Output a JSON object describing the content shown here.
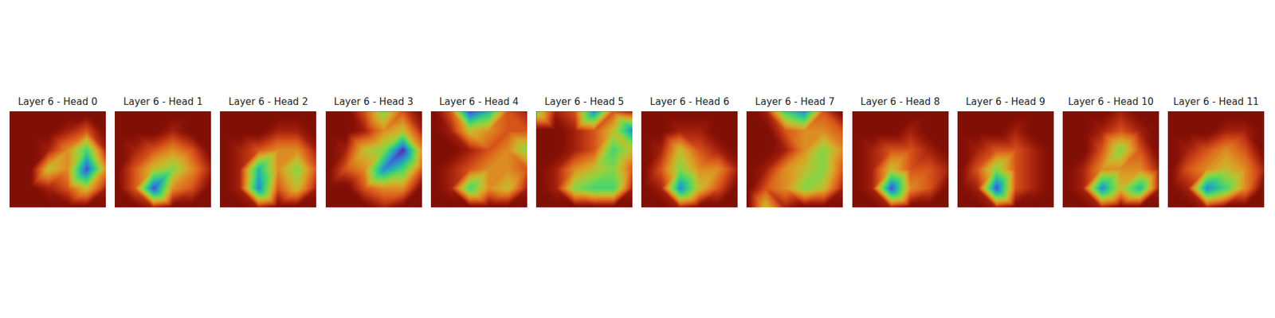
{
  "chart_data": {
    "type": "heatmap_grid",
    "zlim": [
      0,
      1
    ],
    "tick_labels": false,
    "panels": [
      {
        "title": "Layer 6 - Head 0",
        "cells": [
          [
            0,
            0,
            0,
            0,
            0,
            0
          ],
          [
            0,
            0,
            0,
            0.1,
            0.2,
            0
          ],
          [
            0,
            0,
            0.1,
            0.3,
            0.6,
            0.1
          ],
          [
            0,
            0,
            0.4,
            0.3,
            0.9,
            0.3
          ],
          [
            0,
            0,
            0.1,
            0.2,
            0.4,
            0.1
          ],
          [
            0,
            0,
            0,
            0,
            0,
            0
          ]
        ]
      },
      {
        "title": "Layer 6 - Head 1",
        "cells": [
          [
            0,
            0,
            0,
            0,
            0,
            0
          ],
          [
            0,
            0,
            0,
            0.1,
            0,
            0
          ],
          [
            0,
            0.1,
            0.2,
            0.3,
            0.2,
            0
          ],
          [
            0,
            0.2,
            0.4,
            0.5,
            0.3,
            0.1
          ],
          [
            0,
            0.2,
            0.9,
            0.3,
            0.2,
            0
          ],
          [
            0,
            0,
            0.1,
            0,
            0,
            0
          ]
        ]
      },
      {
        "title": "Layer 6 - Head 2",
        "cells": [
          [
            0,
            0,
            0,
            0,
            0,
            0
          ],
          [
            0,
            0,
            0,
            0.1,
            0.1,
            0
          ],
          [
            0,
            0.1,
            0.2,
            0.3,
            0.3,
            0.1
          ],
          [
            0,
            0.1,
            0.7,
            0.3,
            0.5,
            0.2
          ],
          [
            0,
            0.1,
            0.8,
            0.2,
            0.4,
            0.1
          ],
          [
            0,
            0,
            0.1,
            0,
            0,
            0
          ]
        ]
      },
      {
        "title": "Layer 6 - Head 3",
        "cells": [
          [
            0,
            0,
            0.2,
            0.5,
            0.2,
            0
          ],
          [
            0,
            0,
            0.1,
            0.3,
            0.4,
            0.1
          ],
          [
            0,
            0.1,
            0.4,
            0.5,
            0.95,
            0.3
          ],
          [
            0,
            0.2,
            0.3,
            0.8,
            0.6,
            0.2
          ],
          [
            0,
            0,
            0.2,
            0.3,
            0.3,
            0
          ],
          [
            0,
            0,
            0,
            0.1,
            0,
            0
          ]
        ]
      },
      {
        "title": "Layer 6 - Head 4",
        "cells": [
          [
            0,
            0.2,
            0.9,
            0.7,
            0.2,
            0.1
          ],
          [
            0,
            0.1,
            0.4,
            0.3,
            0.2,
            0.2
          ],
          [
            0,
            0,
            0.1,
            0.2,
            0.3,
            0.5
          ],
          [
            0,
            0.1,
            0.2,
            0.3,
            0.3,
            0.2
          ],
          [
            0,
            0.1,
            0.6,
            0.3,
            0.4,
            0.1
          ],
          [
            0,
            0,
            0,
            0,
            0,
            0
          ]
        ]
      },
      {
        "title": "Layer 6 - Head 5",
        "cells": [
          [
            0.5,
            0.1,
            0.2,
            0.8,
            0.2,
            0.1
          ],
          [
            0,
            0,
            0.1,
            0.2,
            0.4,
            0.8
          ],
          [
            0,
            0,
            0.1,
            0.2,
            0.6,
            0.4
          ],
          [
            0,
            0.1,
            0.3,
            0.4,
            0.5,
            0.2
          ],
          [
            0,
            0.1,
            0.5,
            0.6,
            0.6,
            0.1
          ],
          [
            0,
            0,
            0,
            0,
            0,
            0
          ]
        ]
      },
      {
        "title": "Layer 6 - Head 6",
        "cells": [
          [
            0,
            0,
            0,
            0,
            0,
            0
          ],
          [
            0,
            0,
            0.1,
            0.1,
            0,
            0
          ],
          [
            0,
            0.1,
            0.4,
            0.2,
            0.1,
            0
          ],
          [
            0,
            0.2,
            0.5,
            0.3,
            0.3,
            0.1
          ],
          [
            0,
            0.1,
            0.8,
            0.4,
            0.2,
            0
          ],
          [
            0,
            0,
            0.1,
            0,
            0,
            0
          ]
        ]
      },
      {
        "title": "Layer 6 - Head 7",
        "cells": [
          [
            0,
            0.1,
            0.6,
            0.8,
            0.2,
            0
          ],
          [
            0,
            0,
            0.2,
            0.3,
            0.3,
            0.2
          ],
          [
            0,
            0,
            0.1,
            0.3,
            0.5,
            0.3
          ],
          [
            0,
            0.1,
            0.3,
            0.4,
            0.5,
            0.2
          ],
          [
            0,
            0.2,
            0.3,
            0.5,
            0.4,
            0.1
          ],
          [
            0,
            0.4,
            0.1,
            0,
            0,
            0
          ]
        ]
      },
      {
        "title": "Layer 6 - Head 8",
        "cells": [
          [
            0,
            0,
            0,
            0,
            0,
            0
          ],
          [
            0,
            0,
            0,
            0.1,
            0,
            0
          ],
          [
            0,
            0.1,
            0.2,
            0.2,
            0.1,
            0
          ],
          [
            0,
            0.1,
            0.4,
            0.2,
            0.2,
            0.1
          ],
          [
            0,
            0.1,
            0.9,
            0.3,
            0.2,
            0
          ],
          [
            0,
            0,
            0.1,
            0,
            0,
            0
          ]
        ]
      },
      {
        "title": "Layer 6 - Head 9",
        "cells": [
          [
            0,
            0,
            0,
            0,
            0,
            0
          ],
          [
            0,
            0,
            0,
            0.1,
            0,
            0
          ],
          [
            0,
            0.1,
            0.2,
            0.2,
            0.1,
            0
          ],
          [
            0,
            0.2,
            0.5,
            0.2,
            0.1,
            0
          ],
          [
            0,
            0.1,
            0.9,
            0.2,
            0.1,
            0
          ],
          [
            0,
            0,
            0.1,
            0,
            0,
            0
          ]
        ]
      },
      {
        "title": "Layer 6 - Head 10",
        "cells": [
          [
            0,
            0,
            0,
            0.1,
            0,
            0
          ],
          [
            0,
            0,
            0.1,
            0.2,
            0.1,
            0
          ],
          [
            0,
            0,
            0.2,
            0.5,
            0.2,
            0
          ],
          [
            0,
            0.1,
            0.3,
            0.3,
            0.3,
            0.1
          ],
          [
            0,
            0.1,
            0.8,
            0.4,
            0.7,
            0.1
          ],
          [
            0,
            0,
            0.1,
            0,
            0,
            0
          ]
        ]
      },
      {
        "title": "Layer 6 - Head 11",
        "cells": [
          [
            0,
            0,
            0,
            0,
            0,
            0
          ],
          [
            0,
            0,
            0,
            0.1,
            0.1,
            0
          ],
          [
            0,
            0.1,
            0.2,
            0.3,
            0.2,
            0
          ],
          [
            0,
            0.2,
            0.3,
            0.4,
            0.3,
            0.1
          ],
          [
            0,
            0.1,
            0.8,
            0.6,
            0.3,
            0
          ],
          [
            0,
            0,
            0.1,
            0,
            0,
            0
          ]
        ]
      }
    ]
  }
}
